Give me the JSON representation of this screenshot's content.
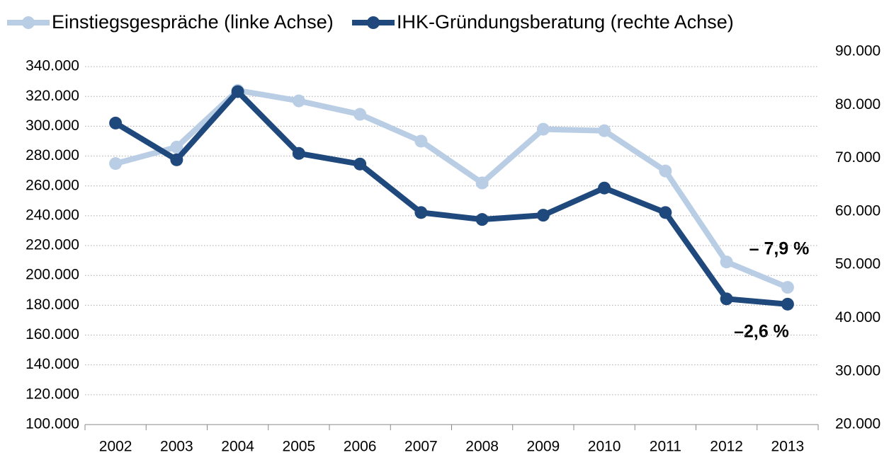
{
  "chart_data": {
    "type": "line",
    "categories": [
      "2002",
      "2003",
      "2004",
      "2005",
      "2006",
      "2007",
      "2008",
      "2009",
      "2010",
      "2011",
      "2012",
      "2013"
    ],
    "series": [
      {
        "name": "Einstiegsgespräche (linke Achse)",
        "color": "#b9cde5",
        "axis": "y",
        "values": [
          275000,
          286000,
          324000,
          317000,
          308000,
          290000,
          262000,
          298000,
          297000,
          270000,
          209000,
          192000
        ]
      },
      {
        "name": "IHK-Gründungsberatung (rechte Achse)",
        "color": "#1f497d",
        "axis": "y2",
        "values": [
          76600,
          69700,
          82500,
          70900,
          68900,
          59800,
          58500,
          59300,
          64400,
          59800,
          43600,
          42600
        ]
      }
    ],
    "ylim": [
      100000,
      350000
    ],
    "yticks": [
      {
        "value": 100000,
        "label": "100.000"
      },
      {
        "value": 120000,
        "label": "120.000"
      },
      {
        "value": 140000,
        "label": "140.000"
      },
      {
        "value": 160000,
        "label": "160.000"
      },
      {
        "value": 180000,
        "label": "180.000"
      },
      {
        "value": 200000,
        "label": "200.000"
      },
      {
        "value": 220000,
        "label": "220.000"
      },
      {
        "value": 240000,
        "label": "240.000"
      },
      {
        "value": 260000,
        "label": "260.000"
      },
      {
        "value": 280000,
        "label": "280.000"
      },
      {
        "value": 300000,
        "label": "300.000"
      },
      {
        "value": 320000,
        "label": "320.000"
      },
      {
        "value": 340000,
        "label": "340.000"
      }
    ],
    "y2lim": [
      20000,
      90000
    ],
    "y2ticks": [
      {
        "value": 20000,
        "label": "20.000"
      },
      {
        "value": 30000,
        "label": "30.000"
      },
      {
        "value": 40000,
        "label": "40.000"
      },
      {
        "value": 50000,
        "label": "50.000"
      },
      {
        "value": 60000,
        "label": "60.000"
      },
      {
        "value": 70000,
        "label": "70.000"
      },
      {
        "value": 80000,
        "label": "80.000"
      },
      {
        "value": 90000,
        "label": "90.000"
      }
    ],
    "annotations": [
      "– 7,9 %",
      "–2,6 %"
    ],
    "grid": true,
    "legend": "top"
  }
}
